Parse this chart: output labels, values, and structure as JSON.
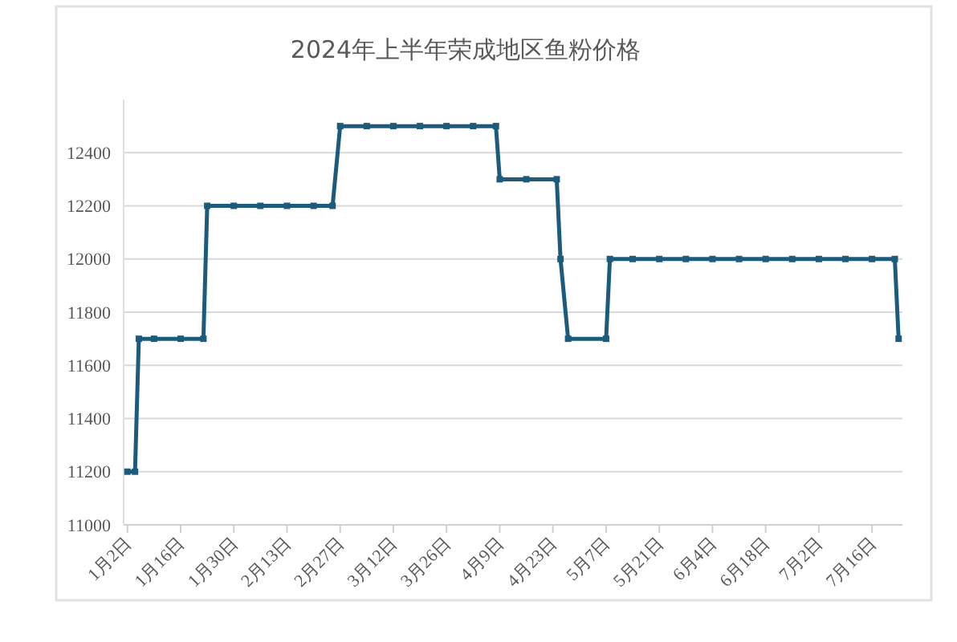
{
  "chart_data": {
    "type": "line",
    "title": "2024年上半年荣成地区鱼粉价格",
    "x": [
      "--01-02",
      "--01-04",
      "--01-05",
      "--01-09",
      "--01-16",
      "--01-22",
      "--01-23",
      "--01-30",
      "--02-06",
      "--02-13",
      "--02-20",
      "--02-25",
      "--02-27",
      "--03-05",
      "--03-12",
      "--03-19",
      "--03-26",
      "--04-02",
      "--04-08",
      "--04-09",
      "--04-16",
      "--04-24",
      "--04-25",
      "--04-27",
      "--05-07",
      "--05-08",
      "--05-14",
      "--05-21",
      "--05-28",
      "--06-04",
      "--06-11",
      "--06-18",
      "--06-25",
      "--07-02",
      "--07-09",
      "--07-16",
      "--07-22",
      "--07-23"
    ],
    "series": [
      {
        "color": "#1d5b7c",
        "values": [
          11200,
          11200,
          11700,
          11700,
          11700,
          11700,
          12200,
          12200,
          12200,
          12200,
          12200,
          12200,
          12500,
          12500,
          12500,
          12500,
          12500,
          12500,
          12500,
          12300,
          12300,
          12300,
          12000,
          11700,
          11700,
          12000,
          12000,
          12000,
          12000,
          12000,
          12000,
          12000,
          12000,
          12000,
          12000,
          12000,
          12000,
          11700
        ]
      }
    ],
    "xlim": [
      "--01-01",
      "--07-24"
    ],
    "xticks": [
      {
        "value": "--01-02",
        "label": "1月2日"
      },
      {
        "value": "--01-16",
        "label": "1月16日"
      },
      {
        "value": "--01-30",
        "label": "1月30日"
      },
      {
        "value": "--02-13",
        "label": "2月13日"
      },
      {
        "value": "--02-27",
        "label": "2月27日"
      },
      {
        "value": "--03-12",
        "label": "3月12日"
      },
      {
        "value": "--03-26",
        "label": "3月26日"
      },
      {
        "value": "--04-09",
        "label": "4月9日"
      },
      {
        "value": "--04-23",
        "label": "4月23日"
      },
      {
        "value": "--05-07",
        "label": "5月7日"
      },
      {
        "value": "--05-21",
        "label": "5月21日"
      },
      {
        "value": "--06-04",
        "label": "6月4日"
      },
      {
        "value": "--06-18",
        "label": "6月18日"
      },
      {
        "value": "--07-02",
        "label": "7月2日"
      },
      {
        "value": "--07-16",
        "label": "7月16日"
      }
    ],
    "ylim": [
      11000,
      12600
    ],
    "yticks": [
      11000,
      11200,
      11400,
      11600,
      11800,
      12000,
      12200,
      12400
    ],
    "grid": "y",
    "marker": "square",
    "line_style": "solid"
  }
}
